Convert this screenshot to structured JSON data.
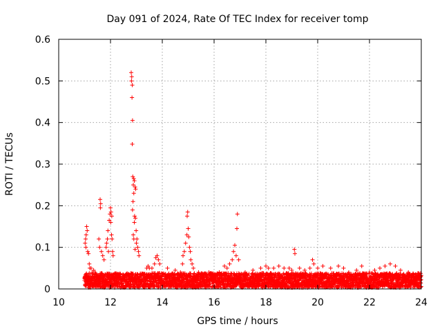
{
  "chart_data": {
    "type": "scatter",
    "title": "Day 091 of 2024, Rate Of TEC Index for receiver tomp",
    "xlabel": "GPS time / hours",
    "ylabel": "ROTI / TECUs",
    "xlim": [
      10,
      24
    ],
    "ylim": [
      0,
      0.6
    ],
    "xticks": [
      10,
      12,
      14,
      16,
      18,
      20,
      22,
      24
    ],
    "xtick_labels": [
      "10",
      "12",
      "14",
      "16",
      "18",
      "20",
      "22",
      "24"
    ],
    "yticks": [
      0,
      0.1,
      0.2,
      0.3,
      0.4,
      0.5,
      0.6
    ],
    "ytick_labels": [
      "0",
      "0.1",
      "0.2",
      "0.3",
      "0.4",
      "0.5",
      "0.6"
    ],
    "grid": true,
    "marker": "+",
    "color": "#ff0000",
    "series": [
      {
        "name": "ROTI",
        "points": [
          [
            12.8,
            0.52
          ],
          [
            12.82,
            0.51
          ],
          [
            12.81,
            0.5
          ],
          [
            12.84,
            0.49
          ],
          [
            12.83,
            0.46
          ],
          [
            12.85,
            0.405
          ],
          [
            12.84,
            0.348
          ],
          [
            12.86,
            0.27
          ],
          [
            12.9,
            0.265
          ],
          [
            12.92,
            0.26
          ],
          [
            12.88,
            0.25
          ],
          [
            12.95,
            0.245
          ],
          [
            12.97,
            0.24
          ],
          [
            12.9,
            0.23
          ],
          [
            12.87,
            0.21
          ],
          [
            12.85,
            0.19
          ],
          [
            12.93,
            0.175
          ],
          [
            12.96,
            0.17
          ],
          [
            12.92,
            0.16
          ],
          [
            12.99,
            0.14
          ],
          [
            12.88,
            0.13
          ],
          [
            12.9,
            0.12
          ],
          [
            13.02,
            0.12
          ],
          [
            13.0,
            0.11
          ],
          [
            13.05,
            0.1
          ],
          [
            13.08,
            0.09
          ],
          [
            13.1,
            0.08
          ],
          [
            12.95,
            0.095
          ],
          [
            11.6,
            0.215
          ],
          [
            11.62,
            0.205
          ],
          [
            11.61,
            0.195
          ],
          [
            11.55,
            0.12
          ],
          [
            11.58,
            0.1
          ],
          [
            11.65,
            0.09
          ],
          [
            11.7,
            0.08
          ],
          [
            11.75,
            0.07
          ],
          [
            12.0,
            0.195
          ],
          [
            12.02,
            0.185
          ],
          [
            11.98,
            0.18
          ],
          [
            12.05,
            0.175
          ],
          [
            11.95,
            0.165
          ],
          [
            12.01,
            0.16
          ],
          [
            11.9,
            0.14
          ],
          [
            11.88,
            0.12
          ],
          [
            11.85,
            0.11
          ],
          [
            11.83,
            0.1
          ],
          [
            12.04,
            0.13
          ],
          [
            12.06,
            0.12
          ],
          [
            12.08,
            0.09
          ],
          [
            12.1,
            0.08
          ],
          [
            11.92,
            0.09
          ],
          [
            11.08,
            0.15
          ],
          [
            11.1,
            0.14
          ],
          [
            11.06,
            0.13
          ],
          [
            11.04,
            0.12
          ],
          [
            11.02,
            0.11
          ],
          [
            11.05,
            0.1
          ],
          [
            11.12,
            0.09
          ],
          [
            11.15,
            0.085
          ],
          [
            11.18,
            0.06
          ],
          [
            11.2,
            0.05
          ],
          [
            11.25,
            0.05
          ],
          [
            11.3,
            0.04
          ],
          [
            11.35,
            0.045
          ],
          [
            11.4,
            0.04
          ],
          [
            13.8,
            0.08
          ],
          [
            13.75,
            0.075
          ],
          [
            13.85,
            0.07
          ],
          [
            13.7,
            0.06
          ],
          [
            13.9,
            0.06
          ],
          [
            13.6,
            0.05
          ],
          [
            13.5,
            0.05
          ],
          [
            13.4,
            0.05
          ],
          [
            13.45,
            0.055
          ],
          [
            14.98,
            0.185
          ],
          [
            14.96,
            0.175
          ],
          [
            15.0,
            0.145
          ],
          [
            14.95,
            0.13
          ],
          [
            15.02,
            0.125
          ],
          [
            14.9,
            0.11
          ],
          [
            14.85,
            0.09
          ],
          [
            15.05,
            0.1
          ],
          [
            15.08,
            0.09
          ],
          [
            14.8,
            0.08
          ],
          [
            14.78,
            0.06
          ],
          [
            15.1,
            0.07
          ],
          [
            15.15,
            0.06
          ],
          [
            15.2,
            0.05
          ],
          [
            14.2,
            0.05
          ],
          [
            14.5,
            0.045
          ],
          [
            14.7,
            0.04
          ],
          [
            15.4,
            0.04
          ],
          [
            15.6,
            0.035
          ],
          [
            16.9,
            0.18
          ],
          [
            16.88,
            0.145
          ],
          [
            16.8,
            0.105
          ],
          [
            16.75,
            0.09
          ],
          [
            16.85,
            0.08
          ],
          [
            16.7,
            0.07
          ],
          [
            16.95,
            0.07
          ],
          [
            16.6,
            0.06
          ],
          [
            16.5,
            0.05
          ],
          [
            16.4,
            0.055
          ],
          [
            16.2,
            0.04
          ],
          [
            16.0,
            0.035
          ],
          [
            15.8,
            0.04
          ],
          [
            17.2,
            0.04
          ],
          [
            17.5,
            0.045
          ],
          [
            17.8,
            0.05
          ],
          [
            18.0,
            0.055
          ],
          [
            18.1,
            0.05
          ],
          [
            18.3,
            0.05
          ],
          [
            18.5,
            0.055
          ],
          [
            18.7,
            0.05
          ],
          [
            18.9,
            0.05
          ],
          [
            19.0,
            0.045
          ],
          [
            19.1,
            0.095
          ],
          [
            19.12,
            0.085
          ],
          [
            19.3,
            0.05
          ],
          [
            19.5,
            0.045
          ],
          [
            19.7,
            0.05
          ],
          [
            19.8,
            0.07
          ],
          [
            19.85,
            0.06
          ],
          [
            20.0,
            0.05
          ],
          [
            20.2,
            0.055
          ],
          [
            20.5,
            0.05
          ],
          [
            20.8,
            0.055
          ],
          [
            21.0,
            0.05
          ],
          [
            21.2,
            0.04
          ],
          [
            21.5,
            0.045
          ],
          [
            21.7,
            0.055
          ],
          [
            22.0,
            0.04
          ],
          [
            22.2,
            0.045
          ],
          [
            22.4,
            0.05
          ],
          [
            22.6,
            0.055
          ],
          [
            22.8,
            0.06
          ],
          [
            23.0,
            0.055
          ],
          [
            23.2,
            0.045
          ],
          [
            23.5,
            0.04
          ],
          [
            23.7,
            0.035
          ],
          [
            23.9,
            0.03
          ],
          [
            11.0,
            0.02
          ],
          [
            11.5,
            0.03
          ],
          [
            12.2,
            0.035
          ],
          [
            12.5,
            0.03
          ],
          [
            13.3,
            0.025
          ],
          [
            14.0,
            0.02
          ],
          [
            14.4,
            0.025
          ],
          [
            15.3,
            0.02
          ],
          [
            15.7,
            0.02
          ],
          [
            16.3,
            0.02
          ],
          [
            17.0,
            0.02
          ],
          [
            17.4,
            0.015
          ],
          [
            18.2,
            0.02
          ],
          [
            18.8,
            0.025
          ],
          [
            19.4,
            0.02
          ],
          [
            20.1,
            0.02
          ],
          [
            20.6,
            0.025
          ],
          [
            21.1,
            0.02
          ],
          [
            21.6,
            0.015
          ],
          [
            22.1,
            0.02
          ],
          [
            22.7,
            0.025
          ],
          [
            23.3,
            0.02
          ],
          [
            23.8,
            0.015
          ]
        ],
        "band": {
          "start": 11.0,
          "end": 24.0,
          "baseline_min": 0.0,
          "baseline_max": 0.035,
          "note": "dense red '+' markers fill the low-value region from 11h to 24h"
        }
      }
    ]
  }
}
